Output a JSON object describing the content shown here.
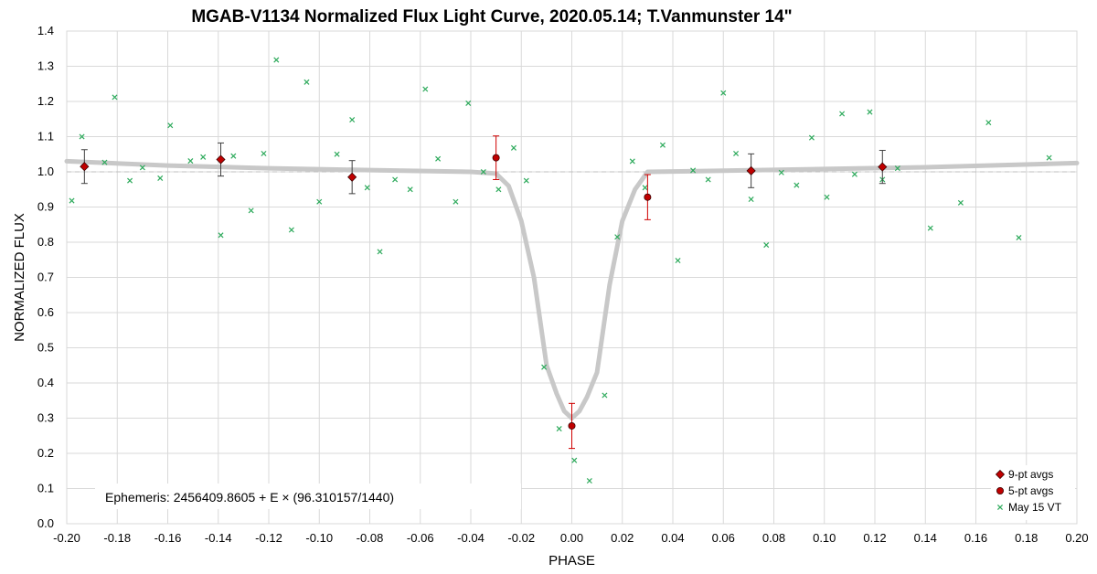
{
  "chart_data": {
    "type": "scatter",
    "title": "MGAB-V1134 Normalized Flux Light Curve, 2020.05.14; T.Vanmunster 14\"",
    "xlabel": "PHASE",
    "ylabel": "NORMALIZED FLUX",
    "xlim": [
      -0.2,
      0.2
    ],
    "ylim": [
      0.0,
      1.4
    ],
    "x_ticks": [
      "-0.20",
      "-0.18",
      "-0.16",
      "-0.14",
      "-0.12",
      "-0.10",
      "-0.08",
      "-0.06",
      "-0.04",
      "-0.02",
      "0.00",
      "0.02",
      "0.04",
      "0.06",
      "0.08",
      "0.10",
      "0.12",
      "0.14",
      "0.16",
      "0.18",
      "0.20"
    ],
    "y_ticks": [
      "0.0",
      "0.1",
      "0.2",
      "0.3",
      "0.4",
      "0.5",
      "0.6",
      "0.7",
      "0.8",
      "0.9",
      "1.0",
      "1.1",
      "1.2",
      "1.3",
      "1.4"
    ],
    "grid": true,
    "reference_line_y": 1.0,
    "legend_position": "bottom-right",
    "annotation": "Ephemeris: 2456409.8605 + E × (96.310157/1440)",
    "series": [
      {
        "name": "9-pt avgs",
        "marker": "diamond",
        "color": "#c00000",
        "points": [
          {
            "x": -0.193,
            "y": 1.015,
            "err": 0.048
          },
          {
            "x": -0.139,
            "y": 1.035,
            "err": 0.047
          },
          {
            "x": -0.087,
            "y": 0.985,
            "err": 0.047
          },
          {
            "x": 0.071,
            "y": 1.003,
            "err": 0.048
          },
          {
            "x": 0.123,
            "y": 1.014,
            "err": 0.047
          }
        ]
      },
      {
        "name": "5-pt avgs",
        "marker": "circle",
        "color": "#c00000",
        "points": [
          {
            "x": -0.03,
            "y": 1.04,
            "err": 0.062
          },
          {
            "x": 0.0,
            "y": 0.278,
            "err": 0.064
          },
          {
            "x": 0.03,
            "y": 0.928,
            "err": 0.064
          }
        ]
      },
      {
        "name": "May 15 VT",
        "marker": "x",
        "color": "#2eaa5c",
        "x": [
          -0.198,
          -0.194,
          -0.185,
          -0.181,
          -0.175,
          -0.17,
          -0.163,
          -0.159,
          -0.151,
          -0.146,
          -0.139,
          -0.134,
          -0.127,
          -0.122,
          -0.117,
          -0.111,
          -0.105,
          -0.1,
          -0.093,
          -0.087,
          -0.081,
          -0.076,
          -0.07,
          -0.064,
          -0.058,
          -0.053,
          -0.046,
          -0.041,
          -0.035,
          -0.029,
          -0.023,
          -0.018,
          -0.011,
          -0.005,
          0.001,
          0.007,
          0.013,
          0.018,
          0.024,
          0.029,
          0.036,
          0.042,
          0.048,
          0.054,
          0.06,
          0.065,
          0.071,
          0.077,
          0.083,
          0.089,
          0.095,
          0.101,
          0.107,
          0.112,
          0.118,
          0.123,
          0.129,
          0.142,
          0.154,
          0.165,
          0.177,
          0.189
        ],
        "y": [
          0.918,
          1.1,
          1.027,
          1.212,
          0.975,
          1.012,
          0.982,
          1.132,
          1.031,
          1.042,
          0.82,
          1.045,
          0.89,
          1.052,
          1.318,
          0.835,
          1.255,
          0.915,
          1.05,
          1.148,
          0.955,
          0.773,
          0.978,
          0.95,
          1.235,
          1.037,
          0.915,
          1.195,
          1.0,
          0.95,
          1.068,
          0.975,
          0.445,
          0.27,
          0.18,
          0.122,
          0.365,
          0.815,
          1.03,
          0.955,
          1.076,
          0.748,
          1.004,
          0.978,
          1.224,
          1.052,
          0.922,
          0.792,
          0.998,
          0.962,
          1.097,
          0.928,
          1.165,
          0.993,
          1.17,
          0.978,
          1.01,
          0.84,
          0.912,
          1.14,
          0.813,
          1.04
        ]
      }
    ],
    "model_curve": {
      "name": "fit",
      "color": "#c8c8c8",
      "x": [
        -0.2,
        -0.16,
        -0.12,
        -0.08,
        -0.04,
        -0.03,
        -0.025,
        -0.02,
        -0.015,
        -0.01,
        -0.006,
        -0.003,
        0.0,
        0.003,
        0.006,
        0.01,
        0.015,
        0.02,
        0.025,
        0.03,
        0.06,
        0.1,
        0.14,
        0.2
      ],
      "y": [
        1.03,
        1.018,
        1.01,
        1.005,
        1.0,
        0.995,
        0.96,
        0.86,
        0.7,
        0.45,
        0.37,
        0.32,
        0.3,
        0.32,
        0.36,
        0.43,
        0.68,
        0.86,
        0.95,
        1.0,
        1.003,
        1.008,
        1.013,
        1.025
      ]
    }
  }
}
